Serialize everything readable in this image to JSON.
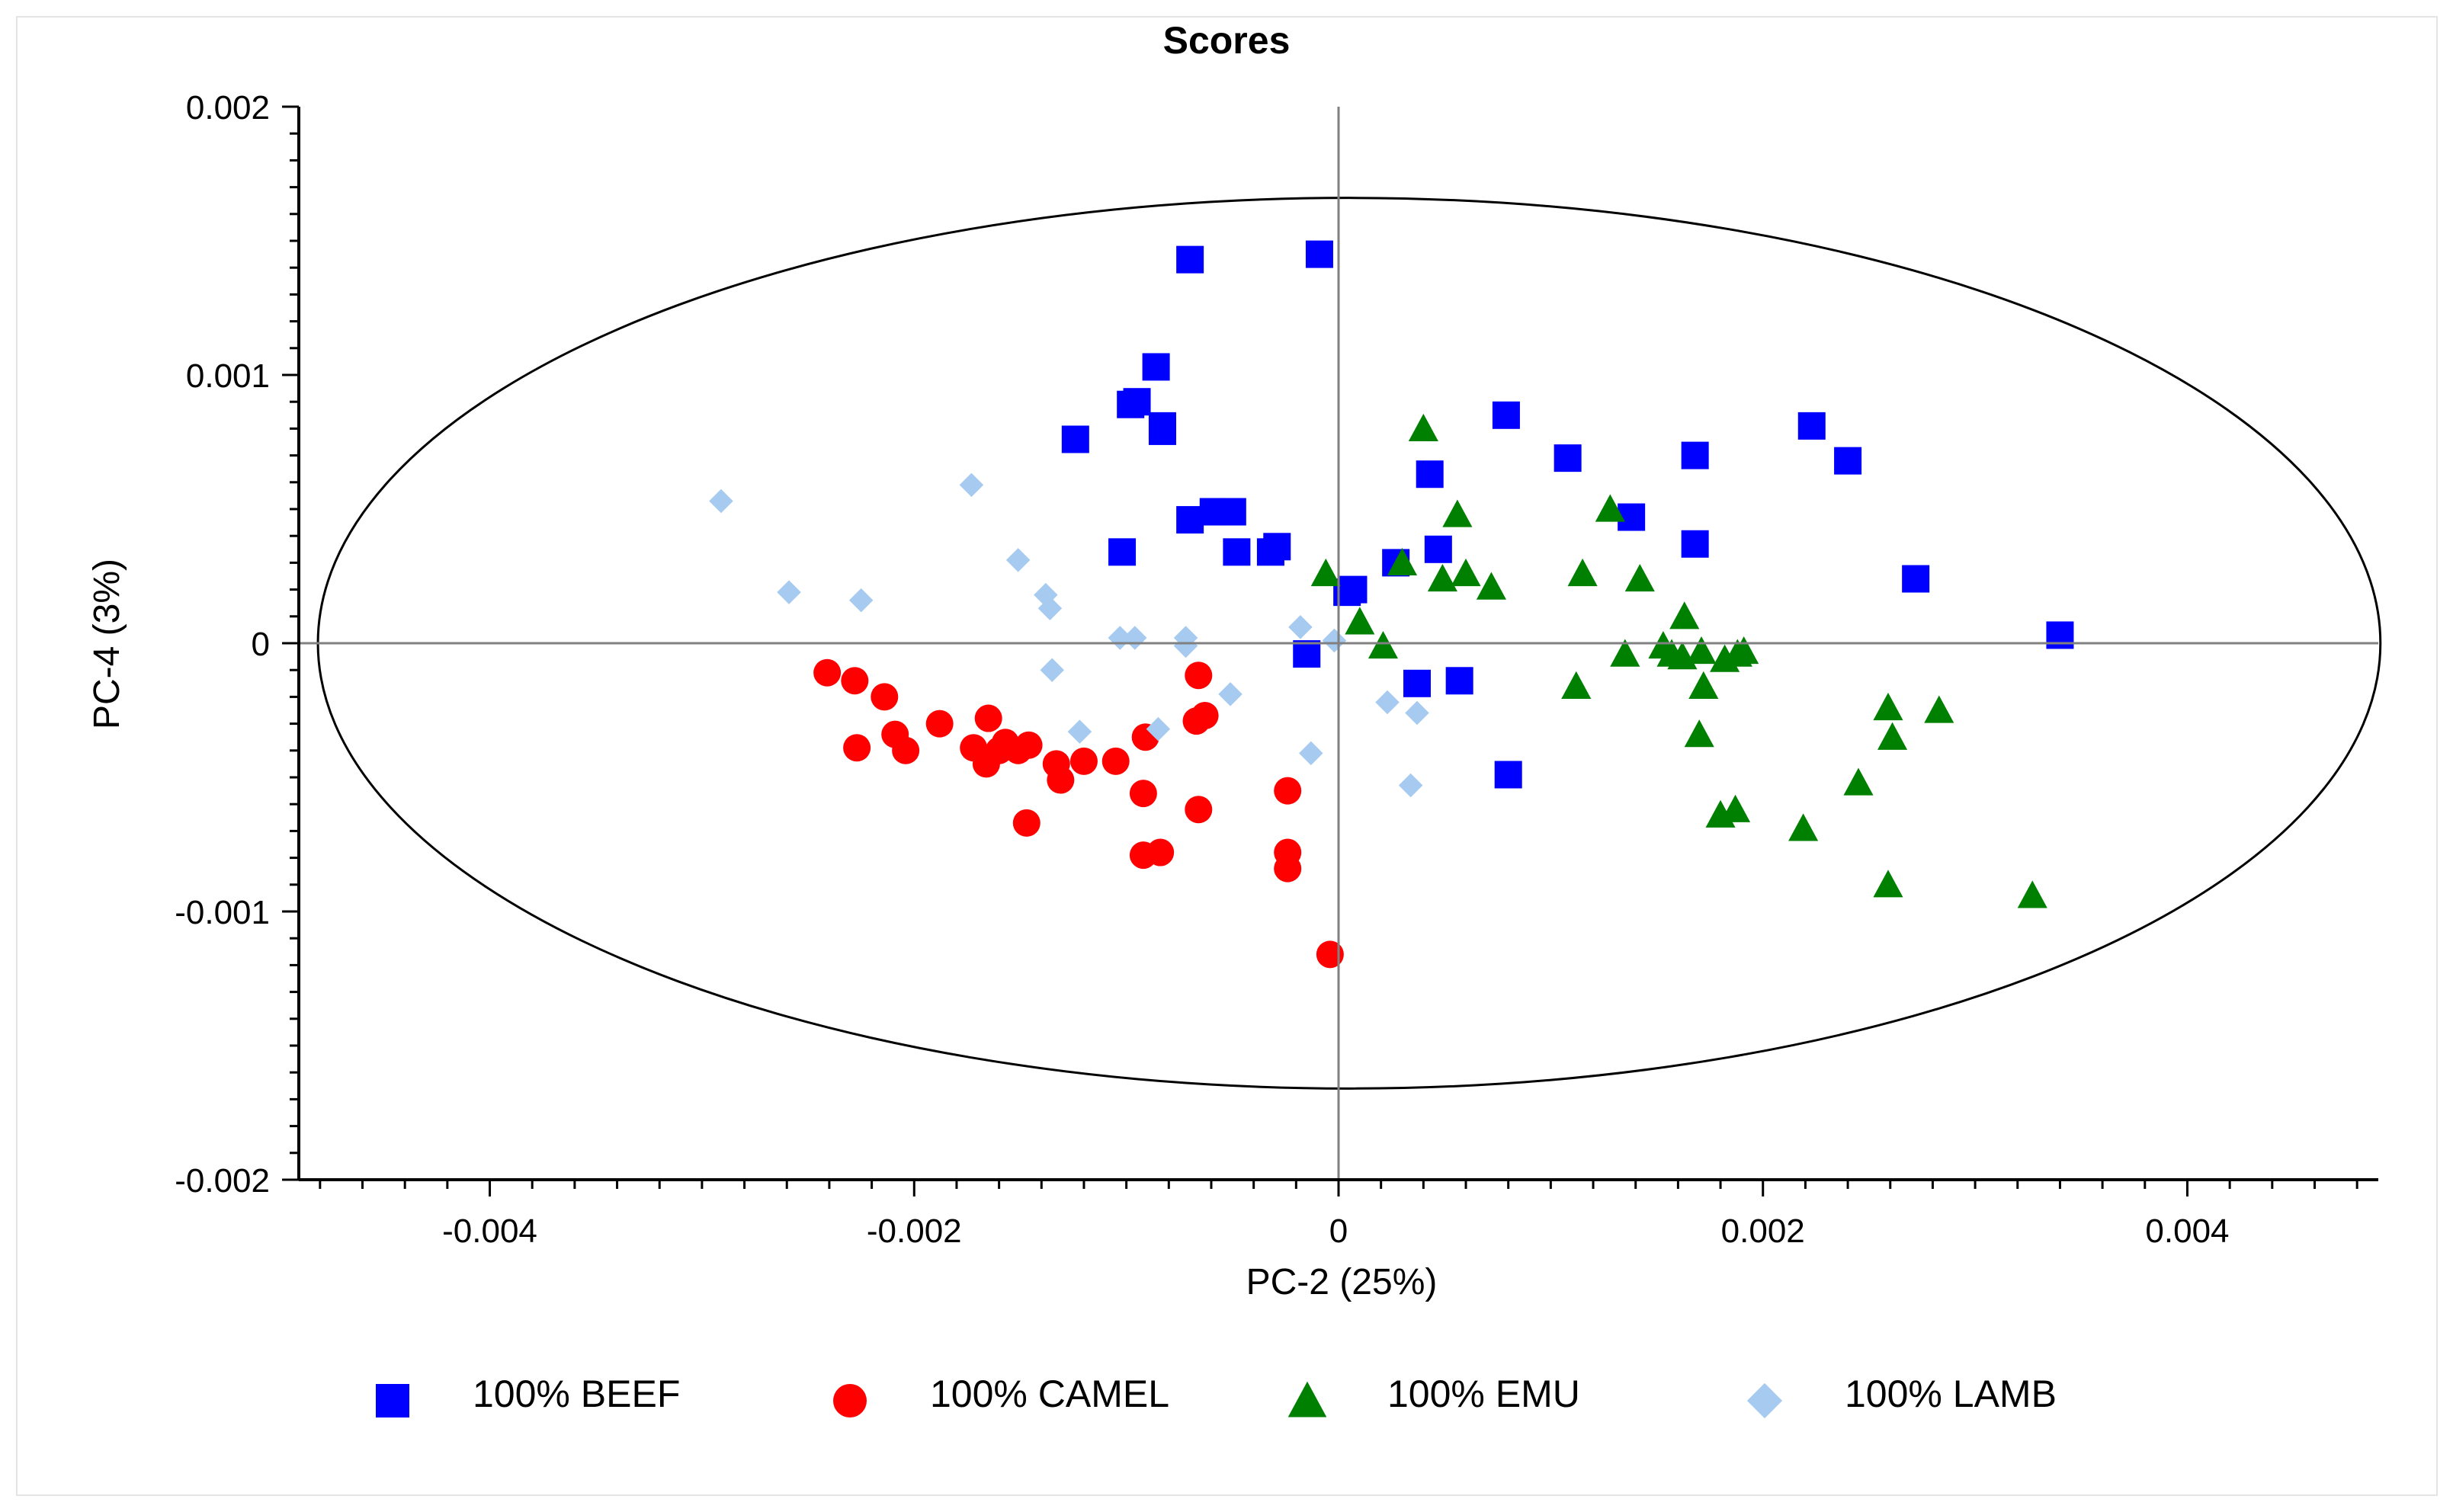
{
  "chart_data": {
    "type": "scatter",
    "title": "Scores",
    "xlabel": "PC-2 (25%)",
    "ylabel": "PC-4 (3%)",
    "xlim": [
      -0.0049,
      0.0049
    ],
    "ylim": [
      -0.002,
      0.002
    ],
    "xticks": [
      {
        "value": -0.004,
        "label": "-0.004"
      },
      {
        "value": -0.002,
        "label": "-0.002"
      },
      {
        "value": 0,
        "label": "0"
      },
      {
        "value": 0.002,
        "label": "0.002"
      },
      {
        "value": 0.004,
        "label": "0.004"
      }
    ],
    "yticks": [
      {
        "value": 0.002,
        "label": "0.002"
      },
      {
        "value": 0.001,
        "label": "0.001"
      },
      {
        "value": 0,
        "label": "0"
      },
      {
        "value": -0.001,
        "label": "-0.001"
      },
      {
        "value": -0.002,
        "label": "-0.002"
      }
    ],
    "ellipse": {
      "cx": 5e-05,
      "cy": 0.0,
      "rx": 0.00486,
      "ry": 0.00166
    },
    "legend_position": "bottom",
    "series": [
      {
        "name": "100% BEEF",
        "marker": "square",
        "color": "#0000ff",
        "points": [
          [
            -0.0007,
            0.00143
          ],
          [
            -9e-05,
            0.00145
          ],
          [
            -0.00086,
            0.00103
          ],
          [
            -0.00095,
            0.0009
          ],
          [
            -0.00098,
            0.00089
          ],
          [
            -0.00083,
            0.00081
          ],
          [
            -0.00083,
            0.00079
          ],
          [
            -0.00124,
            0.00076
          ],
          [
            -0.0007,
            0.00046
          ],
          [
            -0.00059,
            0.00049
          ],
          [
            -0.0005,
            0.00049
          ],
          [
            -0.00102,
            0.00034
          ],
          [
            -0.00048,
            0.00034
          ],
          [
            -0.00032,
            0.00034
          ],
          [
            -0.00029,
            0.00036
          ],
          [
            0.00027,
            0.0003
          ],
          [
            0.00047,
            0.00035
          ],
          [
            7e-05,
            0.0002
          ],
          [
            4e-05,
            0.00019
          ],
          [
            -0.00015,
            -4e-05
          ],
          [
            0.00037,
            -0.00015
          ],
          [
            0.00057,
            -0.00014
          ],
          [
            0.0008,
            -0.00049
          ],
          [
            0.00079,
            0.00085
          ],
          [
            0.00108,
            0.00069
          ],
          [
            0.00043,
            0.00063
          ],
          [
            0.00138,
            0.00047
          ],
          [
            0.00168,
            0.0007
          ],
          [
            0.00168,
            0.00037
          ],
          [
            0.00223,
            0.00081
          ],
          [
            0.0024,
            0.00068
          ],
          [
            0.00272,
            0.00024
          ],
          [
            0.0034,
            3e-05
          ]
        ]
      },
      {
        "name": "100% CAMEL",
        "marker": "circle",
        "color": "#ff0000",
        "points": [
          [
            -0.00241,
            -0.00011
          ],
          [
            -0.00228,
            -0.00014
          ],
          [
            -0.00214,
            -0.0002
          ],
          [
            -0.00209,
            -0.00034
          ],
          [
            -0.00204,
            -0.0004
          ],
          [
            -0.00227,
            -0.00039
          ],
          [
            -0.00188,
            -0.0003
          ],
          [
            -0.00165,
            -0.00028
          ],
          [
            -0.00172,
            -0.00039
          ],
          [
            -0.00166,
            -0.00045
          ],
          [
            -0.0016,
            -0.0004
          ],
          [
            -0.00157,
            -0.00037
          ],
          [
            -0.00151,
            -0.0004
          ],
          [
            -0.00146,
            -0.00038
          ],
          [
            -0.00133,
            -0.00045
          ],
          [
            -0.00131,
            -0.00051
          ],
          [
            -0.0012,
            -0.00044
          ],
          [
            -0.00105,
            -0.00044
          ],
          [
            -0.00091,
            -0.00035
          ],
          [
            -0.00092,
            -0.00056
          ],
          [
            -0.00147,
            -0.00067
          ],
          [
            -0.00092,
            -0.00079
          ],
          [
            -0.00084,
            -0.00078
          ],
          [
            -0.00066,
            -0.00062
          ],
          [
            -0.00067,
            -0.00029
          ],
          [
            -0.00063,
            -0.00027
          ],
          [
            -0.00066,
            -0.00012
          ],
          [
            -0.00024,
            -0.00055
          ],
          [
            -0.00024,
            -0.00078
          ],
          [
            -0.00024,
            -0.00084
          ],
          [
            -4e-05,
            -0.00116
          ]
        ]
      },
      {
        "name": "100% EMU",
        "marker": "triangle",
        "color": "#008000",
        "points": [
          [
            0.0004,
            0.0008
          ],
          [
            0.00056,
            0.00048
          ],
          [
            0.00128,
            0.0005
          ],
          [
            0.0003,
            0.0003
          ],
          [
            -6e-05,
            0.00026
          ],
          [
            0.00049,
            0.00024
          ],
          [
            0.0006,
            0.00026
          ],
          [
            0.00072,
            0.00021
          ],
          [
            0.00115,
            0.00026
          ],
          [
            0.00142,
            0.00024
          ],
          [
            0.0001,
            8e-05
          ],
          [
            0.00021,
            -1e-05
          ],
          [
            0.00163,
            0.0001
          ],
          [
            0.00135,
            -4e-05
          ],
          [
            0.00153,
            -1e-05
          ],
          [
            0.00157,
            -4e-05
          ],
          [
            0.00162,
            -5e-05
          ],
          [
            0.00171,
            -3e-05
          ],
          [
            0.00182,
            -6e-05
          ],
          [
            0.00188,
            -4e-05
          ],
          [
            0.00191,
            -3e-05
          ],
          [
            0.00112,
            -0.00016
          ],
          [
            0.00172,
            -0.00016
          ],
          [
            0.0017,
            -0.00034
          ],
          [
            0.0018,
            -0.00064
          ],
          [
            0.00187,
            -0.00062
          ],
          [
            0.00219,
            -0.00069
          ],
          [
            0.00245,
            -0.00052
          ],
          [
            0.00259,
            -0.00024
          ],
          [
            0.00261,
            -0.00035
          ],
          [
            0.00283,
            -0.00025
          ],
          [
            0.00259,
            -0.0009
          ],
          [
            0.00327,
            -0.00094
          ]
        ]
      },
      {
        "name": "100% LAMB",
        "marker": "diamond",
        "color": "#a6caf0",
        "points": [
          [
            -0.00291,
            0.00053
          ],
          [
            -0.00173,
            0.00059
          ],
          [
            -0.00151,
            0.00031
          ],
          [
            -0.00138,
            0.00018
          ],
          [
            -0.00136,
            0.00013
          ],
          [
            -0.00259,
            0.00019
          ],
          [
            -0.00225,
            0.00016
          ],
          [
            -0.00103,
            2e-05
          ],
          [
            -0.00096,
            2e-05
          ],
          [
            -0.00072,
            2e-05
          ],
          [
            -0.00072,
            -1e-05
          ],
          [
            -0.00018,
            6e-05
          ],
          [
            -2e-05,
            1e-05
          ],
          [
            -0.00135,
            -0.0001
          ],
          [
            -0.00122,
            -0.00033
          ],
          [
            -0.00085,
            -0.00032
          ],
          [
            -0.00051,
            -0.00019
          ],
          [
            -0.00013,
            -0.00041
          ],
          [
            0.00023,
            -0.00022
          ],
          [
            0.00037,
            -0.00026
          ],
          [
            0.00034,
            -0.00053
          ]
        ]
      }
    ]
  }
}
